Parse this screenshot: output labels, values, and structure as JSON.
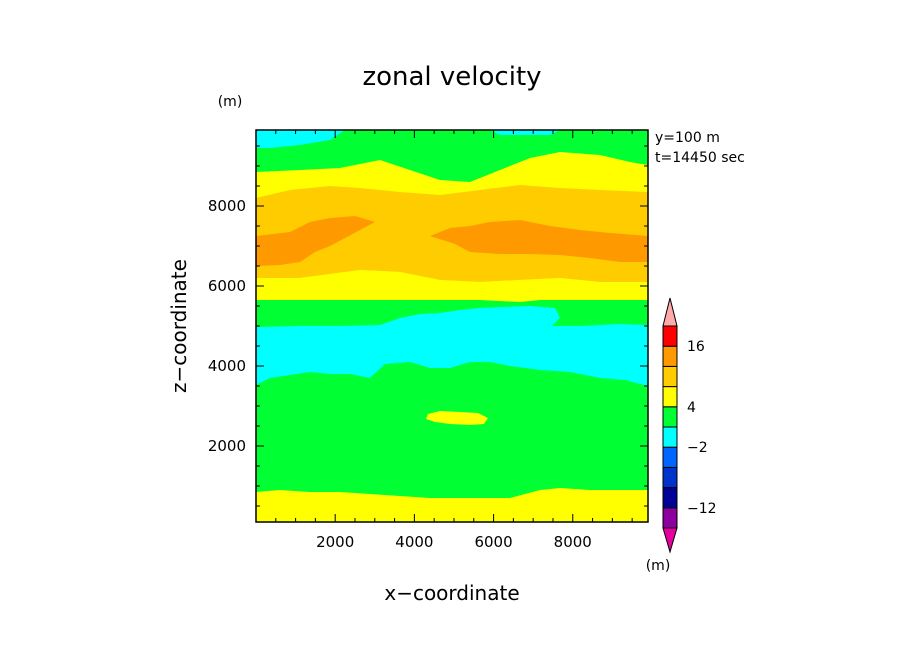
{
  "chart_data": {
    "type": "heatmap",
    "title": "zonal velocity",
    "xlabel": "x−coordinate",
    "ylabel": "z−coordinate",
    "y_unit": "(m)",
    "x_unit": "(m)",
    "annotations": [
      "y=100 m",
      "t=14450 sec"
    ],
    "xlim": [
      0,
      9900
    ],
    "ylim": [
      100,
      9900
    ],
    "x_ticks": [
      2000,
      4000,
      6000,
      8000
    ],
    "y_ticks": [
      2000,
      4000,
      6000,
      8000
    ],
    "x_tick_labels": [
      "2000",
      "4000",
      "6000",
      "8000"
    ],
    "y_tick_labels": [
      "2000",
      "4000",
      "6000",
      "8000"
    ],
    "colorbar": {
      "levels": [
        -16,
        -12,
        -8,
        -4,
        -2,
        2,
        4,
        8,
        12,
        16
      ],
      "labels": [
        "16",
        "4",
        "−2",
        "−12"
      ],
      "label_values": [
        16,
        4,
        -2,
        -12
      ],
      "colors": [
        "#e6009f",
        "#8c009f",
        "#000099",
        "#0033cc",
        "#0066ff",
        "#00ffff",
        "#00ff33",
        "#ffff00",
        "#ffcc00",
        "#ff9900",
        "#ff0000",
        "#ffaaaa"
      ]
    },
    "bands_description": "horizontal bands, value in m/s by height",
    "bands": [
      {
        "z_from": 100,
        "z_to": 800,
        "value": 3
      },
      {
        "z_from": 800,
        "z_to": 3600,
        "value": 0
      },
      {
        "z_from": 2600,
        "z_to": 2800,
        "x_from": 4300,
        "x_to": 5700,
        "value": 3
      },
      {
        "z_from": 3600,
        "z_to": 5000,
        "value": -3
      },
      {
        "z_from": 5000,
        "z_to": 5800,
        "value": 0
      },
      {
        "z_from": 5800,
        "z_to": 6200,
        "value": 3
      },
      {
        "z_from": 6200,
        "z_to": 6600,
        "value": 6
      },
      {
        "z_from": 6600,
        "z_to": 7400,
        "value": 10
      },
      {
        "z_from": 7400,
        "z_to": 8700,
        "value": 6
      },
      {
        "z_from": 8700,
        "z_to": 9300,
        "value": 3
      },
      {
        "z_from": 9300,
        "z_to": 9900,
        "value": 0
      }
    ]
  }
}
